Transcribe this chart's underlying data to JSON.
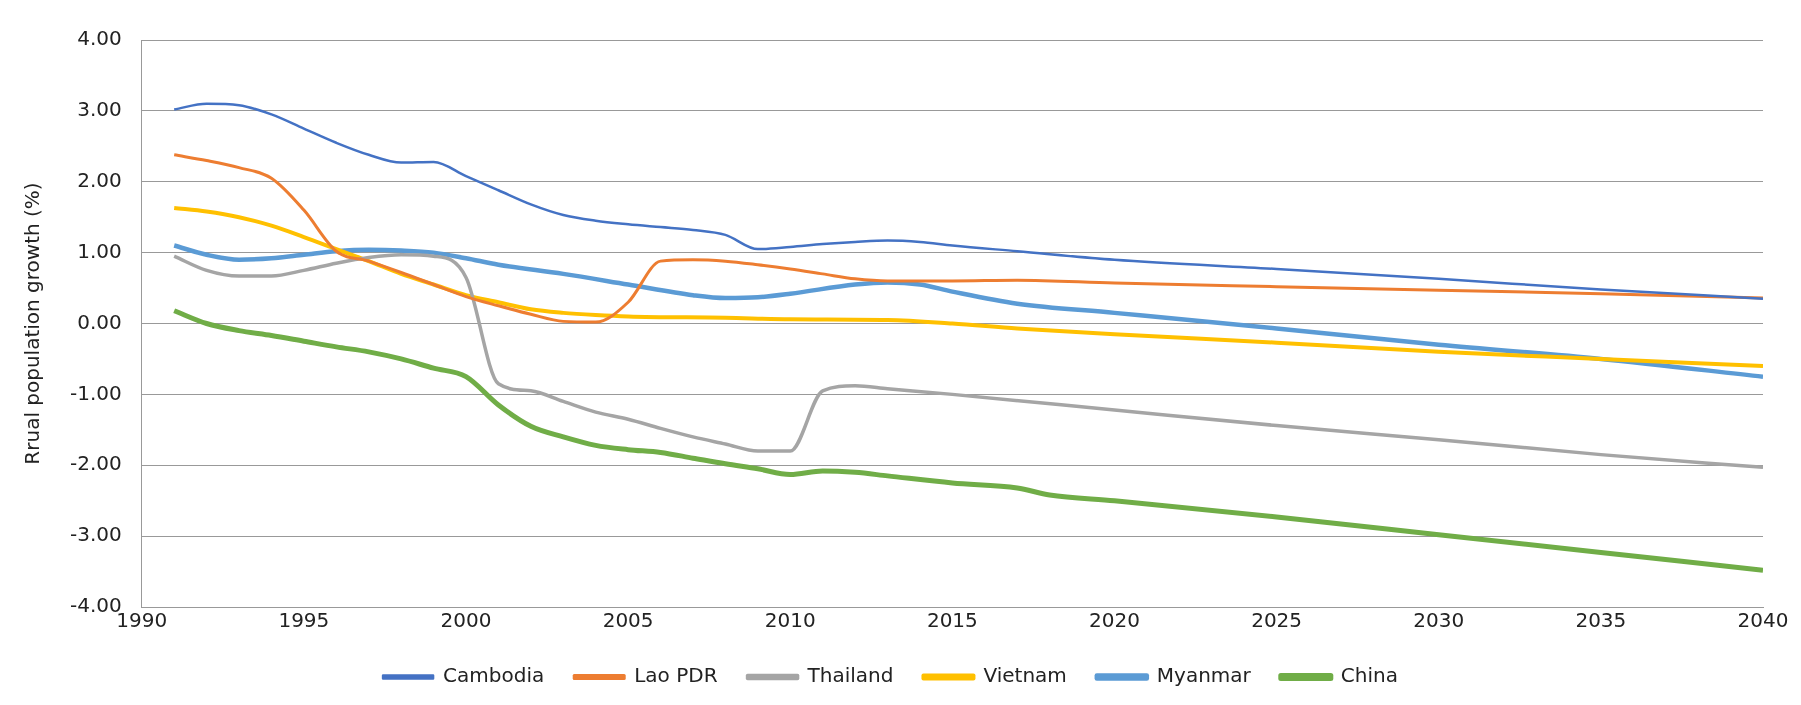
{
  "chart_data": {
    "type": "line",
    "ylabel": "Rrual population growth (%)",
    "xlim": [
      1990,
      2040
    ],
    "xticks": [
      1990,
      1995,
      2000,
      2005,
      2010,
      2015,
      2020,
      2025,
      2030,
      2035,
      2040
    ],
    "ylim": [
      -4,
      4
    ],
    "yticks": [
      {
        "value": -4,
        "label": "-4.00"
      },
      {
        "value": -3,
        "label": "-3.00"
      },
      {
        "value": -2,
        "label": "-2.00"
      },
      {
        "value": -1,
        "label": "-1.00"
      },
      {
        "value": 0,
        "label": "0.00"
      },
      {
        "value": 1,
        "label": "1.00"
      },
      {
        "value": 2,
        "label": "2.00"
      },
      {
        "value": 3,
        "label": "3.00"
      },
      {
        "value": 4,
        "label": "4.00"
      }
    ],
    "grid": "y",
    "legend": "bottom",
    "marker": "none",
    "line_style": "solid",
    "series": [
      {
        "name": "Cambodia",
        "color": "#4472c4",
        "x": [
          1991,
          1992,
          1993,
          1994,
          1995,
          1996,
          1997,
          1998,
          1999,
          2000,
          2001,
          2002,
          2003,
          2004,
          2005,
          2006,
          2007,
          2008,
          2009,
          2010,
          2011,
          2012,
          2013,
          2014,
          2015,
          2017,
          2020,
          2025,
          2030,
          2035,
          2040
        ],
        "values": [
          3.02,
          3.1,
          3.08,
          2.95,
          2.75,
          2.55,
          2.38,
          2.27,
          2.28,
          2.08,
          1.88,
          1.68,
          1.53,
          1.45,
          1.4,
          1.36,
          1.32,
          1.25,
          1.05,
          1.08,
          1.12,
          1.15,
          1.17,
          1.15,
          1.1,
          1.02,
          0.9,
          0.77,
          0.63,
          0.48,
          0.35
        ]
      },
      {
        "name": "Lao PDR",
        "color": "#ed7d31",
        "x": [
          1991,
          1992,
          1993,
          1994,
          1995,
          1996,
          1997,
          1998,
          1999,
          2000,
          2001,
          2002,
          2003,
          2004,
          2005,
          2006,
          2007,
          2008,
          2009,
          2010,
          2011,
          2012,
          2013,
          2015,
          2017,
          2020,
          2025,
          2030,
          2035,
          2040
        ],
        "values": [
          2.38,
          2.3,
          2.2,
          2.05,
          1.6,
          1.02,
          0.88,
          0.72,
          0.55,
          0.38,
          0.25,
          0.13,
          0.03,
          0.02,
          0.3,
          0.88,
          0.9,
          0.88,
          0.83,
          0.77,
          0.7,
          0.63,
          0.6,
          0.6,
          0.61,
          0.57,
          0.52,
          0.47,
          0.42,
          0.36
        ]
      },
      {
        "name": "Thailand",
        "color": "#a5a5a5",
        "x": [
          1991,
          1992,
          1993,
          1994,
          1995,
          1996,
          1997,
          1998,
          1999,
          2000,
          2001,
          2002,
          2003,
          2004,
          2005,
          2006,
          2007,
          2008,
          2009,
          2010,
          2011,
          2012,
          2013,
          2015,
          2020,
          2025,
          2030,
          2035,
          2040
        ],
        "values": [
          0.95,
          0.75,
          0.67,
          0.67,
          0.75,
          0.85,
          0.93,
          0.97,
          0.95,
          0.65,
          -0.85,
          -0.95,
          -1.1,
          -1.25,
          -1.35,
          -1.48,
          -1.6,
          -1.7,
          -1.8,
          -1.8,
          -0.95,
          -0.88,
          -0.92,
          -1.0,
          -1.22,
          -1.44,
          -1.64,
          -1.85,
          -2.03
        ]
      },
      {
        "name": "Vietnam",
        "color": "#ffc000",
        "x": [
          1991,
          1992,
          1993,
          1994,
          1995,
          1996,
          1997,
          1998,
          1999,
          2000,
          2001,
          2002,
          2003,
          2004,
          2005,
          2008,
          2010,
          2013,
          2015,
          2017,
          2020,
          2025,
          2030,
          2035,
          2040
        ],
        "values": [
          1.63,
          1.58,
          1.5,
          1.38,
          1.22,
          1.05,
          0.88,
          0.7,
          0.55,
          0.4,
          0.3,
          0.2,
          0.15,
          0.12,
          0.1,
          0.08,
          0.06,
          0.05,
          0.0,
          -0.07,
          -0.15,
          -0.27,
          -0.4,
          -0.5,
          -0.6
        ]
      },
      {
        "name": "Myanmar",
        "color": "#5b9bd5",
        "x": [
          1991,
          1992,
          1993,
          1994,
          1995,
          1996,
          1997,
          1998,
          1999,
          2000,
          2001,
          2003,
          2005,
          2007,
          2008,
          2009,
          2010,
          2012,
          2013,
          2014,
          2015,
          2017,
          2020,
          2025,
          2030,
          2035,
          2040
        ],
        "values": [
          1.1,
          0.97,
          0.9,
          0.92,
          0.97,
          1.02,
          1.04,
          1.03,
          1.0,
          0.92,
          0.83,
          0.7,
          0.55,
          0.4,
          0.36,
          0.37,
          0.42,
          0.55,
          0.58,
          0.55,
          0.45,
          0.28,
          0.15,
          -0.07,
          -0.3,
          -0.5,
          -0.75
        ]
      },
      {
        "name": "China",
        "color": "#70ad47",
        "x": [
          1991,
          1992,
          1993,
          1994,
          1995,
          1996,
          1997,
          1998,
          1999,
          2000,
          2001,
          2002,
          2003,
          2004,
          2005,
          2006,
          2007,
          2008,
          2009,
          2010,
          2011,
          2012,
          2013,
          2015,
          2017,
          2018,
          2020,
          2025,
          2030,
          2035,
          2040
        ],
        "values": [
          0.18,
          0.0,
          -0.1,
          -0.17,
          -0.25,
          -0.33,
          -0.4,
          -0.5,
          -0.63,
          -0.75,
          -1.15,
          -1.45,
          -1.6,
          -1.72,
          -1.78,
          -1.82,
          -1.9,
          -1.98,
          -2.05,
          -2.13,
          -2.08,
          -2.1,
          -2.15,
          -2.25,
          -2.32,
          -2.42,
          -2.5,
          -2.73,
          -2.98,
          -3.23,
          -3.48
        ]
      }
    ]
  }
}
